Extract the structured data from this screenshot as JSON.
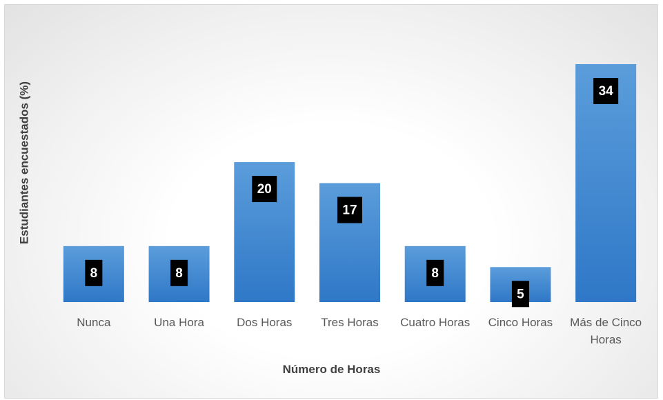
{
  "chart_data": {
    "type": "bar",
    "x_label": "Número de Horas",
    "y_label": "Estudiantes encuestados (%)",
    "categories": [
      "Nunca",
      "Una Hora",
      "Dos Horas",
      "Tres Horas",
      "Cuatro Horas",
      "Cinco Horas",
      "Más de Cinco Horas"
    ],
    "values": [
      8,
      8,
      20,
      17,
      8,
      5,
      34
    ],
    "color": "#4a8bd3",
    "ylim": [
      0,
      34
    ]
  }
}
